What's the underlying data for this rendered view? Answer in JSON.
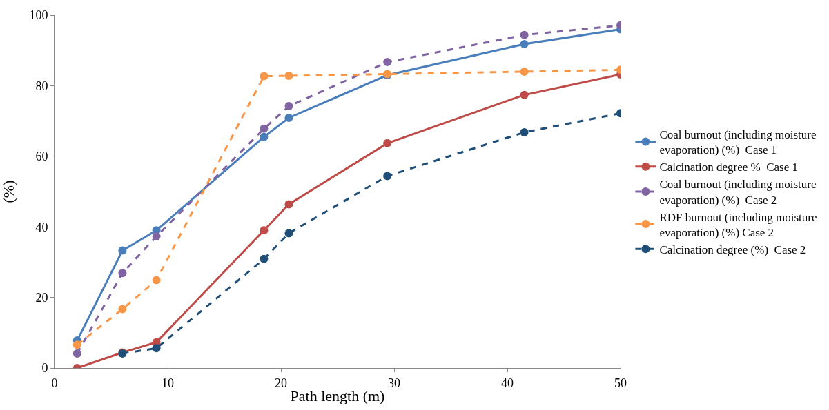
{
  "chart_data": {
    "type": "line",
    "xlabel": "Path length (m)",
    "ylabel": "(%)",
    "xlim": [
      0,
      50
    ],
    "xticks": [
      0,
      10,
      20,
      30,
      40,
      50
    ],
    "ylim": [
      0,
      100
    ],
    "yticks": [
      0,
      20,
      40,
      60,
      80,
      100
    ],
    "legend": "right",
    "marker": "circle",
    "series": [
      {
        "name": "Coal burnout (including moisture evaporation) (%)  Case 1",
        "color": "#4a7ebb",
        "line_style": "solid",
        "x": [
          2,
          6,
          9,
          18.5,
          20.7,
          29.4,
          41.5,
          50
        ],
        "values": [
          7.8,
          33.3,
          39,
          65.5,
          70.9,
          83,
          91.8,
          96
        ]
      },
      {
        "name": "Calcination degree %  Case 1",
        "color": "#be4b48",
        "line_style": "solid",
        "x": [
          2,
          6,
          9,
          18.5,
          20.7,
          29.4,
          41.5,
          50
        ],
        "values": [
          0,
          4.4,
          7.3,
          39,
          46.4,
          63.7,
          77.4,
          83.2
        ]
      },
      {
        "name": "Coal burnout (including moisture evaporation) (%)  Case 2",
        "color": "#8064a2",
        "line_style": "dashed",
        "x": [
          2,
          6,
          9,
          18.5,
          20.7,
          29.4,
          41.5,
          50
        ],
        "values": [
          4.1,
          26.9,
          37.3,
          67.8,
          74.2,
          86.7,
          94.4,
          97.1
        ]
      },
      {
        "name": "RDF burnout (including moisture evaporation) (%) Case 2",
        "color": "#f79646",
        "line_style": "dashed",
        "x": [
          2,
          6,
          9,
          18.5,
          20.7,
          29.4,
          41.5,
          50
        ],
        "values": [
          6.6,
          16.7,
          24.9,
          82.7,
          82.8,
          83.3,
          84,
          84.5
        ]
      },
      {
        "name": "Calcination degree (%)  Case 2",
        "color": "#1f4e79",
        "line_style": "dashed",
        "x": [
          6,
          9,
          18.5,
          20.7,
          29.4,
          41.5,
          50
        ],
        "values": [
          4.1,
          5.6,
          30.9,
          38.2,
          54.4,
          66.8,
          72.2
        ]
      }
    ]
  }
}
